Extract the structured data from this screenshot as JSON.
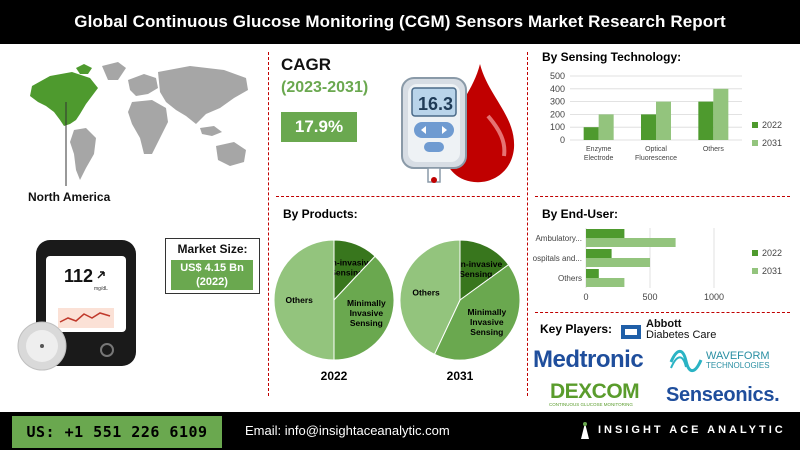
{
  "title": "Global Continuous Glucose Monitoring (CGM) Sensors Market Research Report",
  "region": "North America",
  "cagr": {
    "heading": "CAGR",
    "period": "(2023-2031)",
    "value": "17.9%"
  },
  "device": {
    "reading": "16.3",
    "sensor_reading": "112",
    "sensor_unit": "mg/dL"
  },
  "market_size": {
    "label": "Market Size:",
    "value_line1": "US$ 4.15 Bn",
    "value_line2": "(2022)"
  },
  "colors": {
    "dark_green": "#4e9a2e",
    "light_green": "#93c47d",
    "accent_green": "#6aa84f",
    "divider_red": "#c00000"
  },
  "chart_data": [
    {
      "type": "bar",
      "title": "By Sensing Technology:",
      "categories": [
        "Enzyme Electrode",
        "Optical Fluorescence",
        "Others"
      ],
      "series": [
        {
          "name": "2022",
          "values": [
            100,
            200,
            300
          ]
        },
        {
          "name": "2031",
          "values": [
            200,
            300,
            400
          ]
        }
      ],
      "ylim": [
        0,
        500
      ],
      "yticks": [
        0,
        100,
        200,
        300,
        400,
        500
      ],
      "grid": true,
      "legend": "right"
    },
    {
      "type": "bar",
      "orientation": "horizontal",
      "title": "By End-User:",
      "categories": [
        "Ambulatory...",
        "Hospitals and...",
        "Others"
      ],
      "series": [
        {
          "name": "2022",
          "values": [
            300,
            200,
            100
          ]
        },
        {
          "name": "2031",
          "values": [
            700,
            500,
            300
          ]
        }
      ],
      "xlim": [
        0,
        1000
      ],
      "xticks": [
        0,
        500,
        1000
      ],
      "grid": true,
      "legend": "right"
    },
    {
      "type": "pie",
      "title": "By Products:",
      "charts": [
        {
          "year": "2022",
          "slices": [
            {
              "label": "Non-invasive Sensing",
              "value": 12
            },
            {
              "label": "Minimally Invasive Sensing",
              "value": 38
            },
            {
              "label": "Others",
              "value": 50
            }
          ]
        },
        {
          "year": "2031",
          "slices": [
            {
              "label": "Non-invasive Sensing",
              "value": 15
            },
            {
              "label": "Minimally Invasive Sensing",
              "value": 42
            },
            {
              "label": "Others",
              "value": 43
            }
          ]
        }
      ]
    }
  ],
  "key_players": {
    "label": "Key Players:",
    "abbott": {
      "line1": "Abbott",
      "line2": "Diabetes Care"
    },
    "medtronic": "Medtronic",
    "waveform": {
      "line1": "WAVEFORM",
      "line2": "TECHNOLOGIES"
    },
    "dexcom": {
      "name": "DEXCOM",
      "tagline": "CONTINUOUS GLUCOSE MONITORING"
    },
    "senseonics": "Senseonics."
  },
  "footer": {
    "phone": "US: +1 551 226 6109",
    "email": "Email: info@insightaceanalytic.com",
    "brand": "INSIGHT ACE ANALYTIC"
  }
}
